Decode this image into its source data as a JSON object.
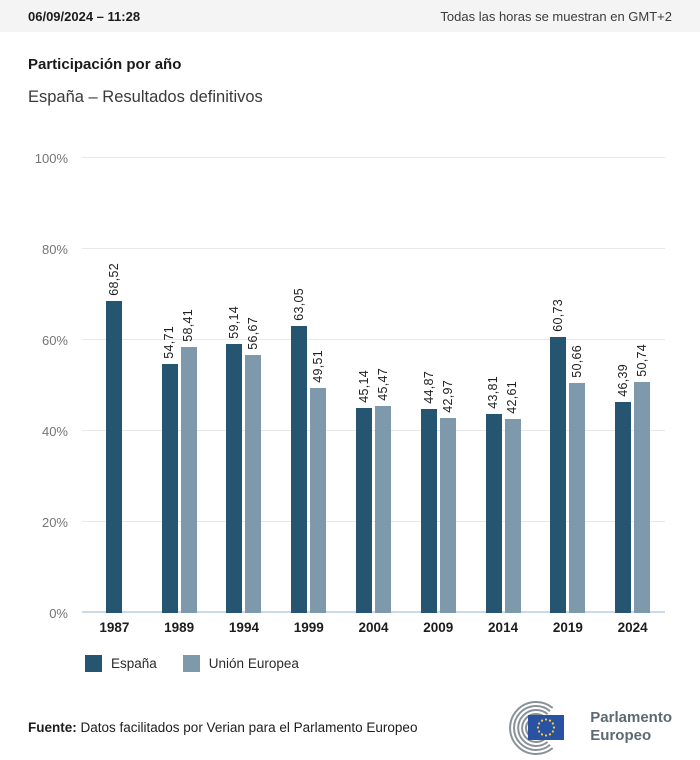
{
  "header": {
    "datetime": "06/09/2024 – 11:28",
    "timezone_note": "Todas las horas se muestran en GMT+2"
  },
  "title": "Participación por año",
  "subtitle": "España – Resultados definitivos",
  "chart_data": {
    "type": "bar",
    "title": "Participación por año",
    "subtitle": "España – Resultados definitivos",
    "categories": [
      "1987",
      "1989",
      "1994",
      "1999",
      "2004",
      "2009",
      "2014",
      "2019",
      "2024"
    ],
    "series": [
      {
        "name": "España",
        "color": "#265572",
        "values": [
          68.52,
          54.71,
          59.14,
          63.05,
          45.14,
          44.87,
          43.81,
          60.73,
          46.39
        ],
        "labels": [
          "68,52",
          "54,71",
          "59,14",
          "63,05",
          "45,14",
          "44,87",
          "43,81",
          "60,73",
          "46,39"
        ]
      },
      {
        "name": "Unión Europea",
        "color": "#7e99ac",
        "values": [
          null,
          58.41,
          56.67,
          49.51,
          45.47,
          42.97,
          42.61,
          50.66,
          50.74
        ],
        "labels": [
          null,
          "58,41",
          "56,67",
          "49,51",
          "45,47",
          "42,97",
          "42,61",
          "50,66",
          "50,74"
        ]
      }
    ],
    "yticks": [
      {
        "label": "0%",
        "value": 0
      },
      {
        "label": "20%",
        "value": 20
      },
      {
        "label": "40%",
        "value": 40
      },
      {
        "label": "60%",
        "value": 60
      },
      {
        "label": "80%",
        "value": 80
      },
      {
        "label": "100%",
        "value": 100
      }
    ],
    "ylim": [
      0,
      100
    ],
    "grid": true,
    "legend_position": "bottom",
    "value_label_rotation": 90
  },
  "legend": [
    {
      "label": "España",
      "color": "#265572"
    },
    {
      "label": "Unión Europea",
      "color": "#7e99ac"
    }
  ],
  "footer": {
    "source_label": "Fuente:",
    "source_text": " Datos facilitados por Verian para el Parlamento Europeo",
    "logo_line1": "Parlamento",
    "logo_line2": "Europeo"
  },
  "colors": {
    "espana_bar": "#265572",
    "ue_bar": "#7e99ac",
    "gridline": "#e8e8e8",
    "zero_axis": "#cbd9e8",
    "header_bg": "#f4f4f4",
    "eu_flag_blue": "#2a52a2",
    "eu_flag_stars": "#f8d12e",
    "logo_gray": "#8a9299"
  }
}
